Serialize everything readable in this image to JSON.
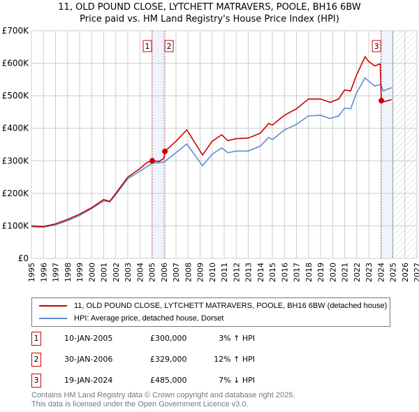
{
  "chart_data": {
    "type": "line",
    "title": "11, OLD POUND CLOSE, LYTCHETT MATRAVERS, POOLE, BH16 6BW",
    "subtitle": "Price paid vs. HM Land Registry's House Price Index (HPI)",
    "xlim": [
      1995,
      2027
    ],
    "ylim": [
      0,
      700000
    ],
    "x_ticks": [
      "1995",
      "1996",
      "1997",
      "1998",
      "1999",
      "2000",
      "2001",
      "2002",
      "2003",
      "2004",
      "2005",
      "2006",
      "2007",
      "2008",
      "2009",
      "2010",
      "2011",
      "2012",
      "2013",
      "2014",
      "2015",
      "2016",
      "2017",
      "2018",
      "2019",
      "2020",
      "2021",
      "2022",
      "2023",
      "2024",
      "2025",
      "2026",
      "2027"
    ],
    "y_ticks": [
      {
        "v": 0,
        "label": "£0"
      },
      {
        "v": 100000,
        "label": "£100K"
      },
      {
        "v": 200000,
        "label": "£200K"
      },
      {
        "v": 300000,
        "label": "£300K"
      },
      {
        "v": 400000,
        "label": "£400K"
      },
      {
        "v": 500000,
        "label": "£500K"
      },
      {
        "v": 600000,
        "label": "£600K"
      },
      {
        "v": 700000,
        "label": "£700K"
      }
    ],
    "grid": true,
    "forecast_from": 2025.0,
    "series": [
      {
        "name": "11, OLD POUND CLOSE, LYTCHETT MATRAVERS, POOLE, BH16 6BW (detached house)",
        "color": "#cc0000",
        "x": [
          1995,
          1996,
          1997,
          1998,
          1999,
          2000,
          2001,
          2001.5,
          2002,
          2003,
          2004,
          2004.6,
          2005.03,
          2005.6,
          2006.0,
          2006.08,
          2007,
          2007.9,
          2009.2,
          2010,
          2010.8,
          2011.3,
          2012,
          2013,
          2014,
          2014.7,
          2015,
          2016,
          2017,
          2018,
          2019,
          2019.8,
          2020.5,
          2021,
          2021.5,
          2022,
          2022.7,
          2023,
          2023.5,
          2023.95,
          2024.05,
          2024.3,
          2024.9
        ],
        "y": [
          100000,
          98000,
          106000,
          120000,
          136000,
          156000,
          181000,
          175000,
          200000,
          250000,
          276000,
          295000,
          300000,
          298000,
          308000,
          329000,
          360000,
          395000,
          318000,
          360000,
          380000,
          362000,
          368000,
          370000,
          385000,
          415000,
          410000,
          440000,
          460000,
          490000,
          490000,
          480000,
          490000,
          518000,
          515000,
          565000,
          620000,
          605000,
          592000,
          598000,
          485000,
          482000,
          488000
        ]
      },
      {
        "name": "HPI: Average price, detached house, Dorset",
        "color": "#5b8dd0",
        "x": [
          1995,
          1996,
          1997,
          1998,
          1999,
          2000,
          2001,
          2001.5,
          2002,
          2003,
          2004,
          2005,
          2006,
          2007,
          2007.9,
          2009.2,
          2010,
          2010.8,
          2011.3,
          2012,
          2013,
          2014,
          2014.7,
          2015,
          2016,
          2017,
          2018,
          2019,
          2019.8,
          2020.5,
          2021,
          2021.5,
          2022,
          2022.7,
          2023,
          2023.5,
          2024,
          2024.2,
          2024.9
        ],
        "y": [
          97000,
          96000,
          103000,
          116000,
          132000,
          153000,
          177000,
          174000,
          196000,
          245000,
          268000,
          292000,
          296000,
          325000,
          352000,
          285000,
          320000,
          340000,
          325000,
          330000,
          330000,
          345000,
          372000,
          365000,
          395000,
          412000,
          438000,
          440000,
          430000,
          438000,
          462000,
          460000,
          510000,
          555000,
          545000,
          530000,
          535000,
          515000,
          525000
        ]
      }
    ],
    "sales": [
      {
        "id": "1",
        "x": 2005.03,
        "price": 300000,
        "date": "10-JAN-2005",
        "price_label": "£300,000",
        "hpi": "3% ↑ HPI"
      },
      {
        "id": "2",
        "x": 2006.08,
        "price": 329000,
        "date": "30-JAN-2006",
        "price_label": "£329,000",
        "hpi": "12% ↑ HPI"
      },
      {
        "id": "3",
        "x": 2024.05,
        "price": 485000,
        "date": "19-JAN-2024",
        "price_label": "£485,000",
        "hpi": "7% ↓ HPI"
      }
    ]
  },
  "footer": {
    "line1": "Contains HM Land Registry data © Crown copyright and database right 2025.",
    "line2": "This data is licensed under the Open Government Licence v3.0."
  }
}
